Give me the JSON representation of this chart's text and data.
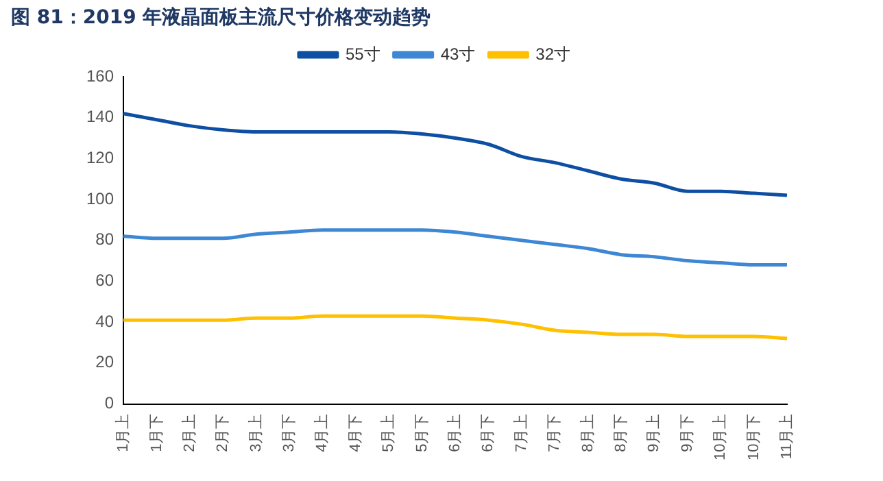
{
  "chart_data": {
    "type": "line",
    "title": "图 81：2019 年液晶面板主流尺寸价格变动趋势",
    "categories": [
      "1月上",
      "1月下",
      "2月上",
      "2月下",
      "3月上",
      "3月下",
      "4月上",
      "4月下",
      "5月上",
      "5月下",
      "6月上",
      "6月下",
      "7月上",
      "7月下",
      "8月上",
      "8月下",
      "9月上",
      "9月下",
      "10月上",
      "10月下",
      "11月上"
    ],
    "series": [
      {
        "name": "55寸",
        "color": "#0e4fa3",
        "values": [
          142,
          139,
          136,
          134,
          133,
          133,
          133,
          133,
          133,
          132,
          130,
          127,
          121,
          118,
          114,
          110,
          108,
          104,
          104,
          103,
          102
        ]
      },
      {
        "name": "43寸",
        "color": "#3d87d4",
        "values": [
          82,
          81,
          81,
          81,
          83,
          84,
          85,
          85,
          85,
          85,
          84,
          82,
          80,
          78,
          76,
          73,
          72,
          70,
          69,
          68,
          68
        ]
      },
      {
        "name": "32寸",
        "color": "#ffc000",
        "values": [
          41,
          41,
          41,
          41,
          42,
          42,
          43,
          43,
          43,
          43,
          42,
          41,
          39,
          36,
          35,
          34,
          34,
          33,
          33,
          33,
          32
        ]
      }
    ],
    "ylim": [
      0,
      160
    ],
    "yticks": [
      0,
      20,
      40,
      60,
      80,
      100,
      120,
      140,
      160
    ],
    "grid": false,
    "legend": "top",
    "marker": "none",
    "line_style": "solid"
  }
}
